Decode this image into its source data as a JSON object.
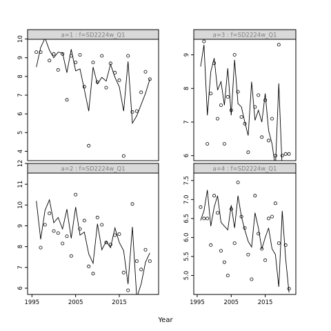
{
  "figure": {
    "xlabel": "Year"
  },
  "chart_data": [
    {
      "type": "scatter",
      "panel": "a=1",
      "title": "a=1  :  f=SD2224w_Q1",
      "xlim": [
        1994,
        2024
      ],
      "ylim": [
        3.5,
        10.5
      ],
      "yticks": [
        4,
        5,
        6,
        7,
        8,
        9,
        10
      ],
      "xticks": [],
      "points": [
        [
          1996,
          9.3
        ],
        [
          1997,
          9.3
        ],
        [
          1998,
          10.1
        ],
        [
          1999,
          8.85
        ],
        [
          2000,
          9.2
        ],
        [
          2001,
          8.35
        ],
        [
          2002,
          9.2
        ],
        [
          2003,
          6.75
        ],
        [
          2004,
          9.1
        ],
        [
          2005,
          8.75
        ],
        [
          2006,
          9.15
        ],
        [
          2007,
          7.45
        ],
        [
          2008,
          4.3
        ],
        [
          2009,
          8.75
        ],
        [
          2010,
          7.7
        ],
        [
          2011,
          9.1
        ],
        [
          2012,
          7.4
        ],
        [
          2013,
          8.7
        ],
        [
          2014,
          8.2
        ],
        [
          2015,
          7.8
        ],
        [
          2016,
          3.75
        ],
        [
          2017,
          9.1
        ],
        [
          2018,
          6.1
        ],
        [
          2019,
          6.15
        ],
        [
          2020,
          7.15
        ],
        [
          2021,
          8.25
        ],
        [
          2022,
          7.85
        ]
      ],
      "line": [
        [
          1996,
          8.5
        ],
        [
          1997,
          9.55
        ],
        [
          1998,
          10.05
        ],
        [
          1999,
          9.4
        ],
        [
          2000,
          9.0
        ],
        [
          2001,
          9.3
        ],
        [
          2002,
          9.25
        ],
        [
          2003,
          8.2
        ],
        [
          2004,
          9.45
        ],
        [
          2005,
          8.3
        ],
        [
          2006,
          8.4
        ],
        [
          2007,
          7.3
        ],
        [
          2008,
          6.15
        ],
        [
          2009,
          8.5
        ],
        [
          2010,
          7.6
        ],
        [
          2011,
          7.95
        ],
        [
          2012,
          7.75
        ],
        [
          2013,
          8.65
        ],
        [
          2014,
          7.95
        ],
        [
          2015,
          7.45
        ],
        [
          2016,
          6.15
        ],
        [
          2017,
          8.8
        ],
        [
          2018,
          5.5
        ],
        [
          2019,
          5.9
        ],
        [
          2020,
          6.5
        ],
        [
          2021,
          7.1
        ],
        [
          2022,
          7.85
        ]
      ]
    },
    {
      "type": "scatter",
      "panel": "a=3",
      "title": "a=3  :  f=SD2224w_Q1",
      "xlim": [
        1994,
        2024
      ],
      "ylim": [
        5.85,
        9.75
      ],
      "yticks": [
        6,
        7,
        8,
        9
      ],
      "xticks": [],
      "points": [
        [
          1996,
          9.65
        ],
        [
          1997,
          9.4
        ],
        [
          1998,
          6.35
        ],
        [
          1999,
          7.85
        ],
        [
          2000,
          8.75
        ],
        [
          2001,
          7.1
        ],
        [
          2002,
          7.5
        ],
        [
          2003,
          6.35
        ],
        [
          2004,
          7.75
        ],
        [
          2005,
          7.35
        ],
        [
          2006,
          9.0
        ],
        [
          2007,
          7.9
        ],
        [
          2008,
          7.15
        ],
        [
          2009,
          6.95
        ],
        [
          2010,
          6.1
        ],
        [
          2011,
          9.6
        ],
        [
          2012,
          7.45
        ],
        [
          2013,
          7.8
        ],
        [
          2014,
          6.55
        ],
        [
          2015,
          7.65
        ],
        [
          2016,
          6.45
        ],
        [
          2017,
          7.1
        ],
        [
          2018,
          6.0
        ],
        [
          2019,
          9.3
        ],
        [
          2020,
          6.0
        ],
        [
          2021,
          6.05
        ],
        [
          2022,
          6.05
        ]
      ],
      "line": [
        [
          1996,
          8.65
        ],
        [
          1997,
          9.3
        ],
        [
          1998,
          7.2
        ],
        [
          1999,
          8.5
        ],
        [
          2000,
          8.9
        ],
        [
          2001,
          7.95
        ],
        [
          2002,
          8.2
        ],
        [
          2003,
          7.5
        ],
        [
          2004,
          8.6
        ],
        [
          2005,
          7.2
        ],
        [
          2006,
          8.85
        ],
        [
          2007,
          7.55
        ],
        [
          2008,
          7.45
        ],
        [
          2009,
          7.0
        ],
        [
          2010,
          6.6
        ],
        [
          2011,
          8.2
        ],
        [
          2012,
          7.05
        ],
        [
          2013,
          7.35
        ],
        [
          2014,
          7.0
        ],
        [
          2015,
          7.85
        ],
        [
          2016,
          6.75
        ],
        [
          2017,
          6.35
        ],
        [
          2018,
          5.65
        ],
        [
          2019,
          8.15
        ],
        [
          2020,
          5.55
        ],
        [
          2021,
          5.55
        ],
        [
          2022,
          5.65
        ]
      ]
    },
    {
      "type": "scatter",
      "panel": "a=2",
      "title": "a=2  :  f=SD2224w_Q1",
      "xlim": [
        1994,
        2024
      ],
      "ylim": [
        5.7,
        12.0
      ],
      "yticks": [
        6,
        7,
        8,
        9,
        10,
        11,
        12
      ],
      "xticks": [
        1995,
        2005,
        2015
      ],
      "points": [
        [
          1996,
          11.8
        ],
        [
          1997,
          7.95
        ],
        [
          1998,
          9.05
        ],
        [
          1999,
          9.6
        ],
        [
          2000,
          8.75
        ],
        [
          2001,
          8.65
        ],
        [
          2002,
          8.15
        ],
        [
          2003,
          8.5
        ],
        [
          2004,
          7.55
        ],
        [
          2005,
          10.5
        ],
        [
          2006,
          8.85
        ],
        [
          2007,
          9.25
        ],
        [
          2008,
          7.05
        ],
        [
          2009,
          6.7
        ],
        [
          2010,
          9.4
        ],
        [
          2011,
          9.05
        ],
        [
          2012,
          8.2
        ],
        [
          2013,
          8.1
        ],
        [
          2014,
          8.55
        ],
        [
          2015,
          8.6
        ],
        [
          2016,
          6.75
        ],
        [
          2017,
          5.9
        ],
        [
          2018,
          10.05
        ],
        [
          2019,
          7.3
        ],
        [
          2020,
          6.9
        ],
        [
          2021,
          7.85
        ],
        [
          2022,
          7.3
        ]
      ],
      "line": [
        [
          1996,
          10.2
        ],
        [
          1997,
          8.35
        ],
        [
          1998,
          9.75
        ],
        [
          1999,
          10.25
        ],
        [
          2000,
          9.15
        ],
        [
          2001,
          9.4
        ],
        [
          2002,
          8.85
        ],
        [
          2003,
          9.8
        ],
        [
          2004,
          8.4
        ],
        [
          2005,
          9.9
        ],
        [
          2006,
          8.55
        ],
        [
          2007,
          8.7
        ],
        [
          2008,
          7.65
        ],
        [
          2009,
          7.2
        ],
        [
          2010,
          9.1
        ],
        [
          2011,
          7.85
        ],
        [
          2012,
          8.25
        ],
        [
          2013,
          7.95
        ],
        [
          2014,
          8.9
        ],
        [
          2015,
          8.2
        ],
        [
          2016,
          7.8
        ],
        [
          2017,
          6.2
        ],
        [
          2018,
          8.95
        ],
        [
          2019,
          5.55
        ],
        [
          2020,
          6.2
        ],
        [
          2021,
          7.25
        ],
        [
          2022,
          7.7
        ]
      ]
    },
    {
      "type": "scatter",
      "panel": "a=4",
      "title": "a=4  :  f=SD2224w_Q1",
      "xlim": [
        1994,
        2024
      ],
      "ylim": [
        4.5,
        7.95
      ],
      "yticks": [
        5.0,
        5.5,
        6.0,
        6.5,
        7.0,
        7.5
      ],
      "xticks": [
        1995,
        2005,
        2015
      ],
      "points": [
        [
          1996,
          6.8
        ],
        [
          1997,
          6.5
        ],
        [
          1998,
          6.5
        ],
        [
          1999,
          5.8
        ],
        [
          2000,
          7.1
        ],
        [
          2001,
          6.65
        ],
        [
          2002,
          5.65
        ],
        [
          2003,
          5.35
        ],
        [
          2004,
          5.0
        ],
        [
          2005,
          6.75
        ],
        [
          2006,
          5.85
        ],
        [
          2007,
          7.45
        ],
        [
          2008,
          6.55
        ],
        [
          2009,
          6.25
        ],
        [
          2010,
          5.55
        ],
        [
          2011,
          4.9
        ],
        [
          2012,
          7.1
        ],
        [
          2013,
          6.1
        ],
        [
          2014,
          5.7
        ],
        [
          2015,
          5.4
        ],
        [
          2016,
          6.5
        ],
        [
          2017,
          6.55
        ],
        [
          2018,
          6.9
        ],
        [
          2019,
          5.85
        ],
        [
          2020,
          7.75
        ],
        [
          2021,
          5.8
        ],
        [
          2022,
          4.65
        ]
      ],
      "line": [
        [
          1996,
          6.45
        ],
        [
          1997,
          6.7
        ],
        [
          1998,
          7.25
        ],
        [
          1999,
          6.3
        ],
        [
          2000,
          6.8
        ],
        [
          2001,
          7.1
        ],
        [
          2002,
          6.4
        ],
        [
          2003,
          6.3
        ],
        [
          2004,
          6.2
        ],
        [
          2005,
          6.85
        ],
        [
          2006,
          6.25
        ],
        [
          2007,
          7.1
        ],
        [
          2008,
          6.55
        ],
        [
          2009,
          6.2
        ],
        [
          2010,
          5.9
        ],
        [
          2011,
          5.75
        ],
        [
          2012,
          6.65
        ],
        [
          2013,
          6.25
        ],
        [
          2014,
          5.7
        ],
        [
          2015,
          6.0
        ],
        [
          2016,
          6.25
        ],
        [
          2017,
          5.7
        ],
        [
          2018,
          5.55
        ],
        [
          2019,
          4.7
        ],
        [
          2020,
          6.7
        ],
        [
          2021,
          5.45
        ],
        [
          2022,
          4.55
        ]
      ]
    }
  ]
}
